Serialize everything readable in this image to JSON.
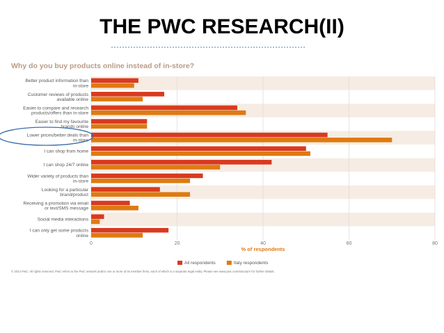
{
  "slide_title": "THE PWC RESEARCH(II)",
  "chart_data": {
    "type": "hbar",
    "title": "Why do you buy products online instead of in-store?",
    "categories": [
      "Better product information than\nin-store",
      "Customer reviews of products\navailable online",
      "Easier to compare and research\nproducts/offers than in-store",
      "Easier to find my favourite\nbrands online",
      "Lower prices/better deals than\nin-store",
      "I can shop from home",
      "I can shop 24/7 online",
      "Wider variety of products than\nin-store",
      "Looking for a particular\nbrand/product",
      "Receiving a promotion via email\nor text/SMS message",
      "Social media interactions",
      "I can only get some products\nonline"
    ],
    "series": [
      {
        "name": "All respondents",
        "color": "#d93a1f",
        "values": [
          11,
          17,
          34,
          13,
          55,
          50,
          42,
          26,
          16,
          9,
          3,
          18
        ]
      },
      {
        "name": "Italy respondents",
        "color": "#de7a12",
        "values": [
          10,
          12,
          36,
          13,
          70,
          51,
          30,
          23,
          23,
          11,
          2,
          12
        ]
      }
    ],
    "xlabel": "% of respondents",
    "xlim": [
      0,
      80
    ],
    "xticks": [
      0,
      20,
      40,
      60,
      80
    ],
    "grid": true,
    "footnote": "© 2014 PwC. All rights reserved. PwC refers to the PwC network and/or one or more of its member firms, each of which is a separate legal entity. Please see www.pwc.com/structure for further details."
  }
}
